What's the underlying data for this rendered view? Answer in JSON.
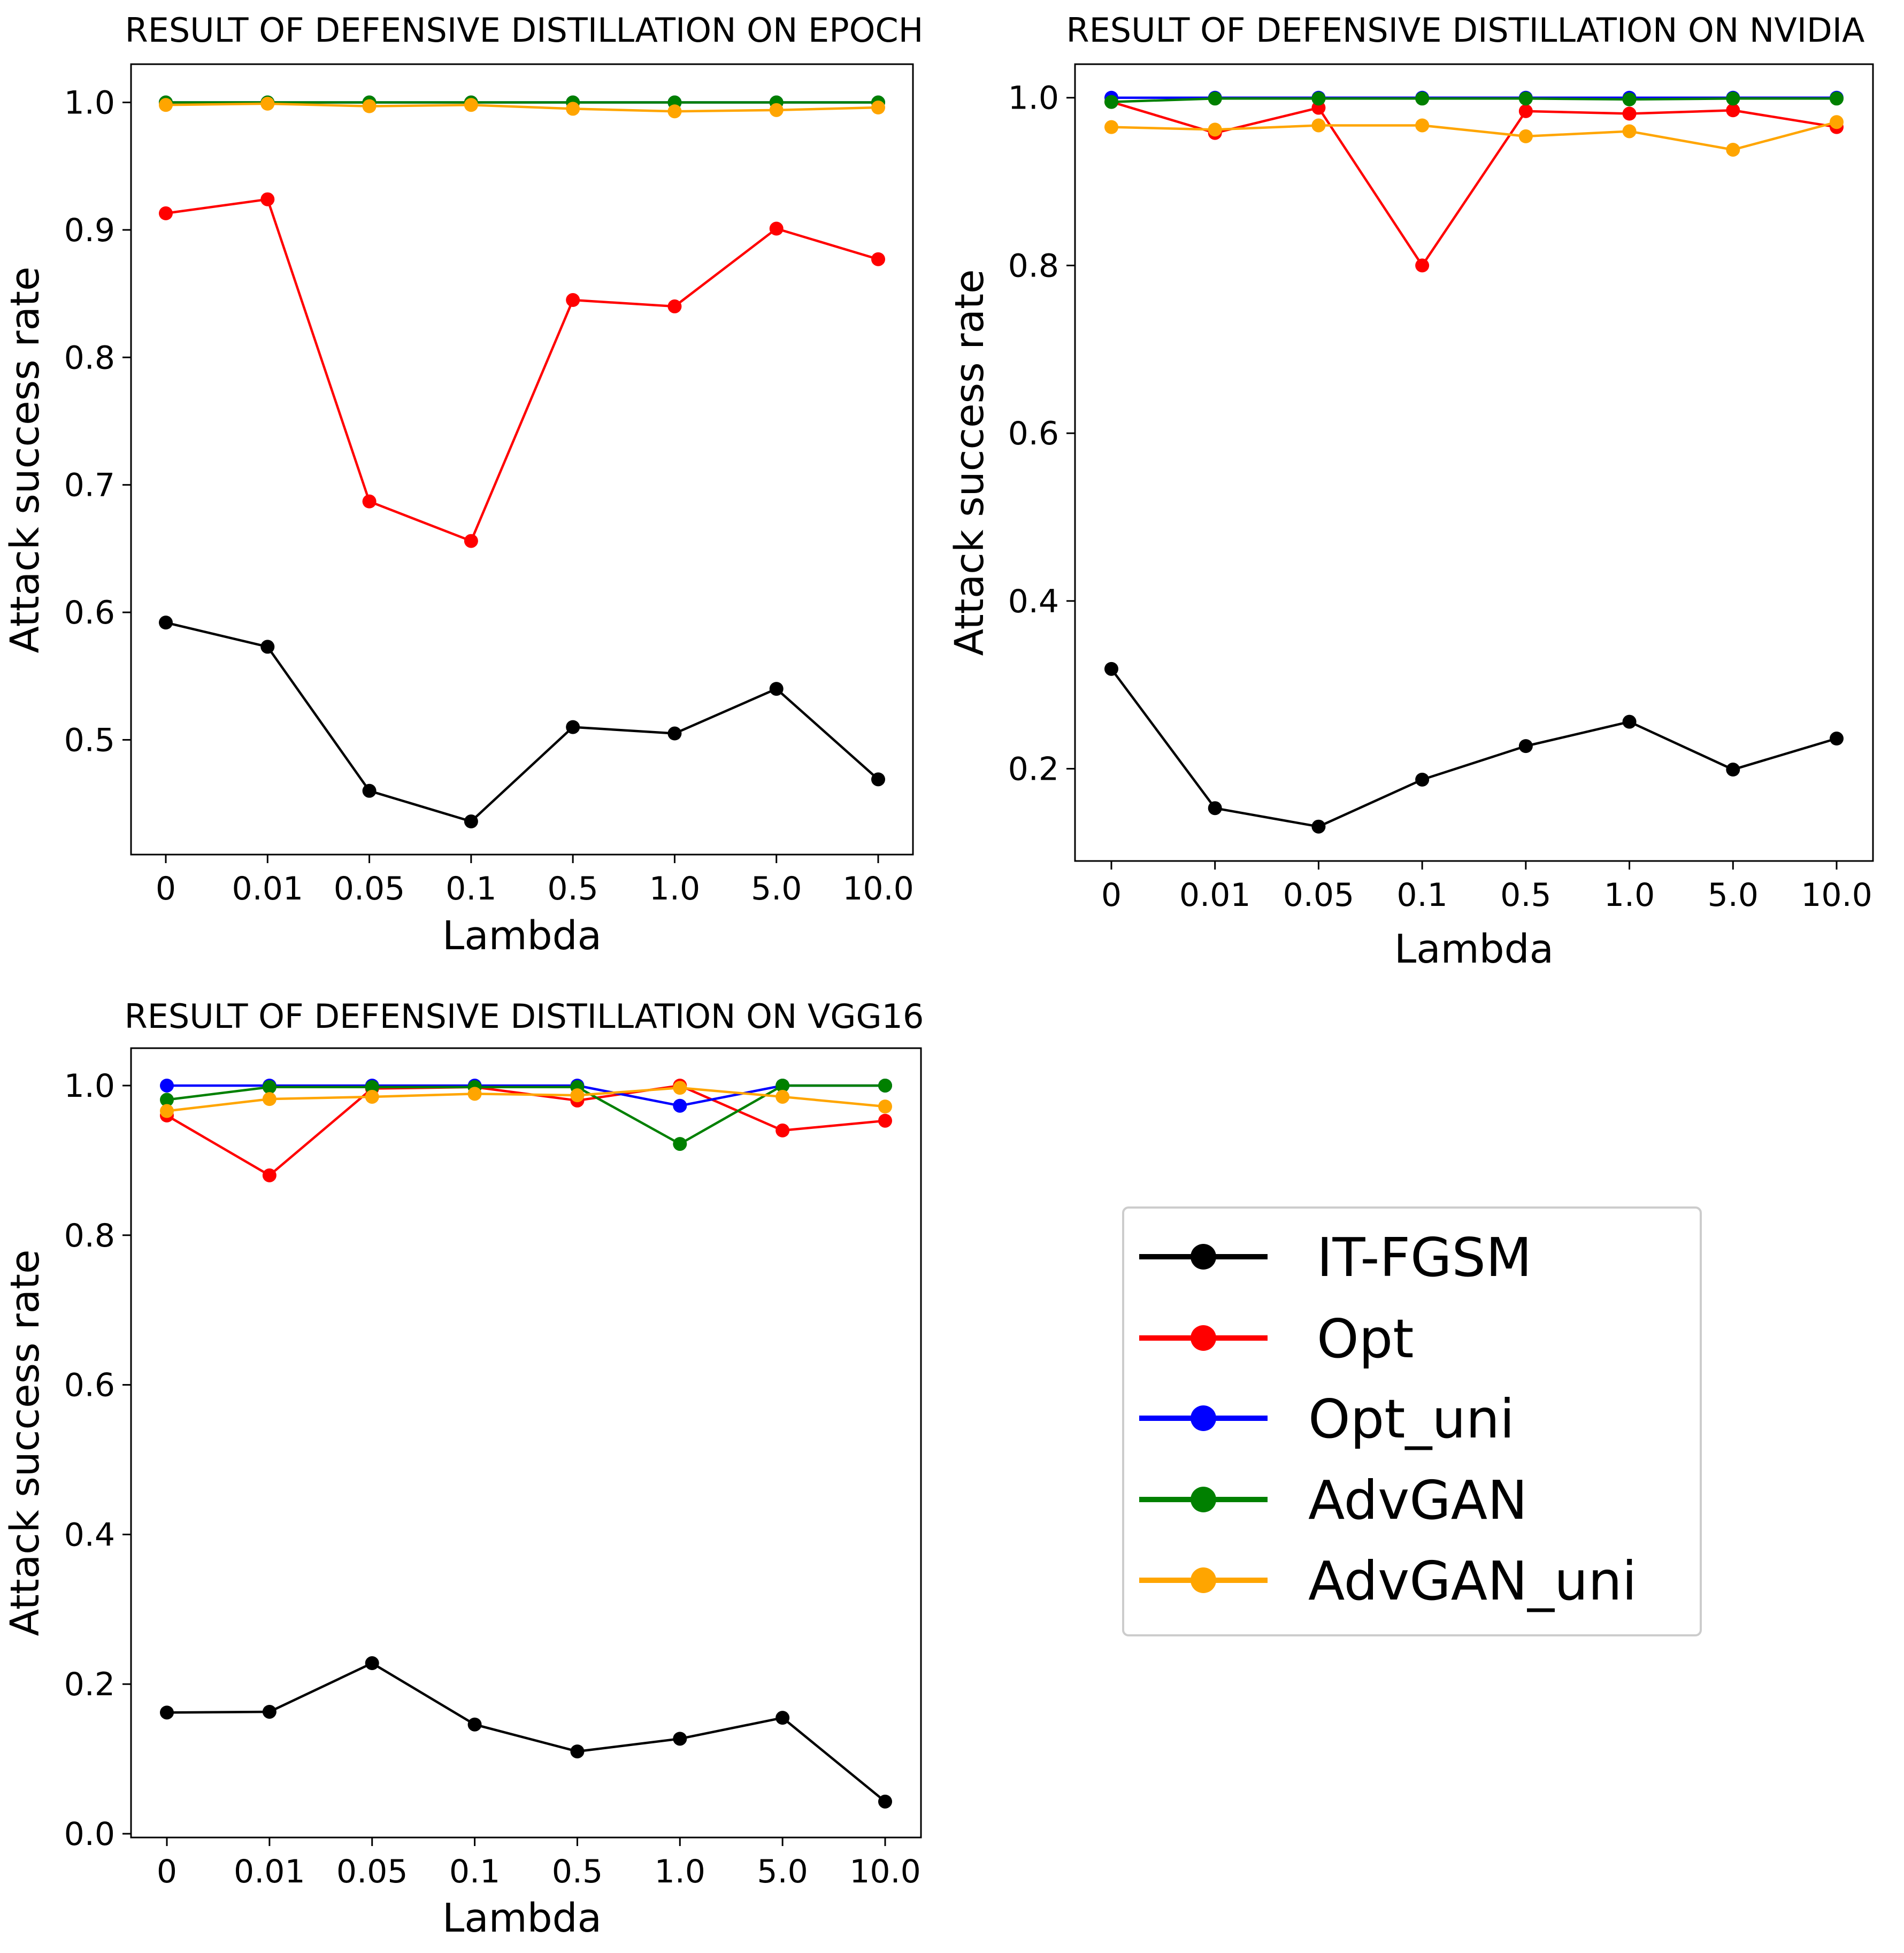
{
  "chart_data": [
    {
      "type": "line",
      "title": "RESULT OF DEFENSIVE DISTILLATION ON EPOCH",
      "xlabel": "Lambda",
      "ylabel": "Attack success rate",
      "categories": [
        "0",
        "0.01",
        "0.05",
        "0.1",
        "0.5",
        "1.0",
        "5.0",
        "10.0"
      ],
      "ylim": [
        0.41,
        1.03
      ],
      "yticks": [
        0.5,
        0.6,
        0.7,
        0.8,
        0.9,
        1.0
      ],
      "ytick_labels": [
        "0.5",
        "0.6",
        "0.7",
        "0.8",
        "0.9",
        "1.0"
      ],
      "grid": false,
      "series": [
        {
          "name": "IT-FGSM",
          "values": [
            0.592,
            0.573,
            0.46,
            0.436,
            0.51,
            0.505,
            0.54,
            0.469
          ]
        },
        {
          "name": "Opt",
          "values": [
            0.913,
            0.924,
            0.687,
            0.656,
            0.845,
            0.84,
            0.901,
            0.877
          ]
        },
        {
          "name": "Opt_uni",
          "values": [
            1.0,
            1.0,
            1.0,
            1.0,
            1.0,
            1.0,
            1.0,
            1.0
          ]
        },
        {
          "name": "AdvGAN",
          "values": [
            1.0,
            1.0,
            1.0,
            1.0,
            1.0,
            1.0,
            1.0,
            1.0
          ]
        },
        {
          "name": "AdvGAN_uni",
          "values": [
            0.998,
            0.999,
            0.997,
            0.998,
            0.995,
            0.993,
            0.994,
            0.996
          ]
        }
      ]
    },
    {
      "type": "line",
      "title": "RESULT OF DEFENSIVE DISTILLATION ON NVIDIA",
      "xlabel": "Lambda",
      "ylabel": "Attack success rate",
      "categories": [
        "0",
        "0.01",
        "0.05",
        "0.1",
        "0.5",
        "1.0",
        "5.0",
        "10.0"
      ],
      "ylim": [
        0.09,
        1.04
      ],
      "yticks": [
        0.2,
        0.4,
        0.6,
        0.8,
        1.0
      ],
      "ytick_labels": [
        "0.2",
        "0.4",
        "0.6",
        "0.8",
        "1.0"
      ],
      "grid": false,
      "series": [
        {
          "name": "IT-FGSM",
          "values": [
            0.319,
            0.153,
            0.131,
            0.187,
            0.227,
            0.256,
            0.199,
            0.236
          ]
        },
        {
          "name": "Opt",
          "values": [
            0.995,
            0.958,
            0.988,
            0.8,
            0.984,
            0.981,
            0.985,
            0.965
          ]
        },
        {
          "name": "Opt_uni",
          "values": [
            1.0,
            1.0,
            1.0,
            1.0,
            1.0,
            1.0,
            1.0,
            1.0
          ]
        },
        {
          "name": "AdvGAN",
          "values": [
            0.995,
            0.999,
            0.999,
            0.999,
            0.999,
            0.998,
            0.999,
            0.999
          ]
        },
        {
          "name": "AdvGAN_uni",
          "values": [
            0.965,
            0.962,
            0.967,
            0.967,
            0.954,
            0.96,
            0.938,
            0.971
          ]
        }
      ]
    },
    {
      "type": "line",
      "title": "RESULT OF DEFENSIVE DISTILLATION ON VGG16",
      "xlabel": "Lambda",
      "ylabel": "Attack success rate",
      "categories": [
        "0",
        "0.01",
        "0.05",
        "0.1",
        "0.5",
        "1.0",
        "5.0",
        "10.0"
      ],
      "ylim": [
        -0.005,
        1.05
      ],
      "yticks": [
        0.0,
        0.2,
        0.4,
        0.6,
        0.8,
        1.0
      ],
      "ytick_labels": [
        "0.0",
        "0.2",
        "0.4",
        "0.6",
        "0.8",
        "1.0"
      ],
      "grid": false,
      "series": [
        {
          "name": "IT-FGSM",
          "values": [
            0.162,
            0.163,
            0.228,
            0.146,
            0.11,
            0.127,
            0.155,
            0.043
          ]
        },
        {
          "name": "Opt",
          "values": [
            0.96,
            0.88,
            0.996,
            0.998,
            0.98,
            1.0,
            0.94,
            0.953
          ]
        },
        {
          "name": "Opt_uni",
          "values": [
            1.0,
            1.0,
            1.0,
            1.0,
            1.0,
            0.973,
            1.0,
            1.0
          ]
        },
        {
          "name": "AdvGAN",
          "values": [
            0.981,
            0.998,
            0.998,
            0.998,
            0.998,
            0.922,
            1.0,
            1.0
          ]
        },
        {
          "name": "AdvGAN_uni",
          "values": [
            0.966,
            0.982,
            0.985,
            0.989,
            0.987,
            0.997,
            0.985,
            0.972
          ]
        }
      ]
    }
  ],
  "legend": {
    "placement": "lower-right",
    "entries": [
      {
        "name": "IT-FGSM",
        "color": "#000000"
      },
      {
        "name": "Opt",
        "color": "#ff0000"
      },
      {
        "name": "Opt_uni",
        "color": "#0000ff"
      },
      {
        "name": "AdvGAN",
        "color": "#008000"
      },
      {
        "name": "AdvGAN_uni",
        "color": "#ffa500"
      }
    ]
  },
  "series_colors": {
    "IT-FGSM": "#000000",
    "Opt": "#ff0000",
    "Opt_uni": "#0000ff",
    "AdvGAN": "#008000",
    "AdvGAN_uni": "#ffa500"
  }
}
